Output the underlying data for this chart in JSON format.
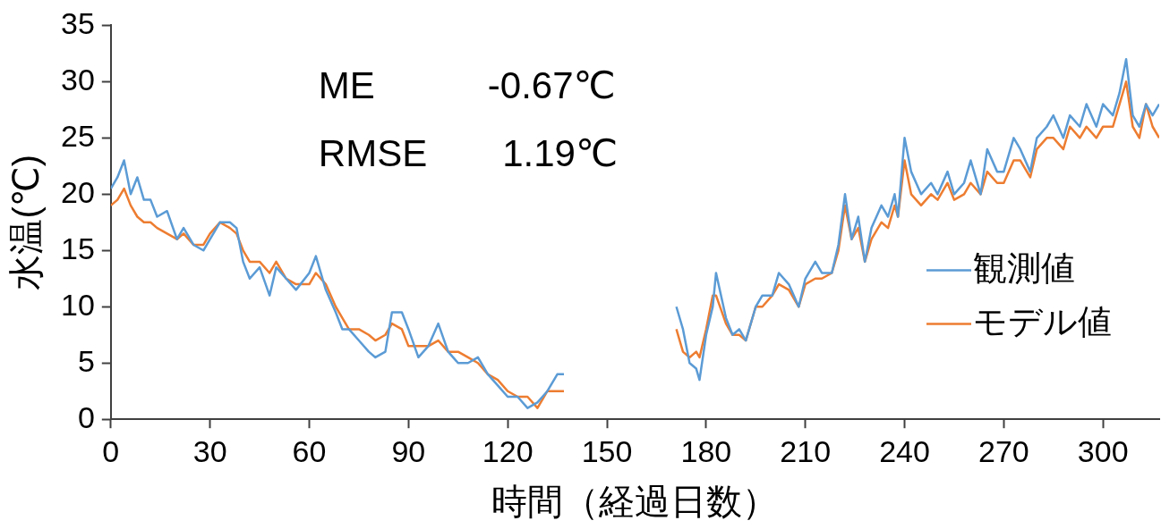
{
  "chart_data": {
    "type": "line",
    "xlabel": "時間（経過日数）",
    "ylabel": "水温(℃)",
    "annotations": [
      "ME　　　-0.67℃",
      "RMSE　　1.19℃"
    ],
    "xlim": [
      0,
      317
    ],
    "xticks": [
      0,
      30,
      60,
      90,
      120,
      150,
      180,
      210,
      240,
      270,
      300
    ],
    "ylim": [
      0,
      35
    ],
    "yticks": [
      0,
      5,
      10,
      15,
      20,
      25,
      30,
      35
    ],
    "grid": false,
    "legend": "right",
    "marker": "none",
    "line_style": "solid",
    "x": [
      0,
      2,
      4,
      6,
      8,
      10,
      12,
      14,
      17,
      20,
      22,
      25,
      28,
      30,
      33,
      36,
      38,
      40,
      42,
      45,
      48,
      50,
      53,
      56,
      60,
      62,
      65,
      68,
      70,
      72,
      75,
      78,
      80,
      83,
      85,
      88,
      90,
      93,
      96,
      99,
      102,
      105,
      108,
      111,
      114,
      117,
      120,
      123,
      126,
      129,
      132,
      135,
      137,
      150,
      171,
      173,
      175,
      177,
      178,
      180,
      182,
      183,
      186,
      188,
      190,
      192,
      195,
      197,
      200,
      202,
      205,
      208,
      210,
      213,
      215,
      218,
      220,
      222,
      224,
      226,
      228,
      230,
      233,
      235,
      237,
      238,
      240,
      242,
      245,
      248,
      250,
      253,
      255,
      258,
      260,
      263,
      265,
      268,
      270,
      273,
      275,
      278,
      280,
      283,
      285,
      288,
      290,
      293,
      295,
      298,
      300,
      303,
      305,
      307,
      309,
      311,
      313,
      315,
      317
    ],
    "series": [
      {
        "name": "観測値",
        "color": "#5b9bd5",
        "values": [
          20.5,
          21.5,
          23,
          20,
          21.5,
          19.5,
          19.5,
          18,
          18.5,
          16,
          17,
          15.5,
          15,
          16,
          17.5,
          17.5,
          17,
          14,
          12.5,
          13.5,
          11,
          13.5,
          12.5,
          11.5,
          13,
          14.5,
          11.5,
          9.5,
          8,
          8,
          7,
          6,
          5.5,
          6,
          9.5,
          9.5,
          8,
          5.5,
          6.5,
          8.5,
          6,
          5,
          5,
          5.5,
          4,
          3,
          2,
          2,
          1,
          1.5,
          2.5,
          4,
          4,
          null,
          10,
          8,
          5,
          4.5,
          3.5,
          7.5,
          10,
          13,
          9,
          7.5,
          8,
          7,
          10,
          11,
          11,
          13,
          12,
          10,
          12.5,
          14,
          13,
          13,
          15.5,
          20,
          16,
          18,
          14,
          17,
          19,
          18,
          20,
          18,
          25,
          22,
          20,
          21,
          20,
          22,
          20,
          21,
          23,
          20,
          24,
          22,
          22,
          25,
          24,
          22,
          25,
          26,
          27,
          25,
          27,
          26,
          28,
          26,
          28,
          27,
          29,
          32,
          27,
          26,
          28,
          27,
          28
        ]
      },
      {
        "name": "モデル値",
        "color": "#ed7d31",
        "values": [
          19,
          19.5,
          20.5,
          19,
          18,
          17.5,
          17.5,
          17,
          16.5,
          16,
          16.5,
          15.5,
          15.5,
          16.5,
          17.5,
          17,
          16.5,
          15,
          14,
          14,
          13,
          14,
          12.5,
          12,
          12,
          13,
          12,
          10,
          9,
          8,
          8,
          7.5,
          7,
          7.5,
          8.5,
          8,
          6.5,
          6.5,
          6.5,
          7,
          6,
          6,
          5.5,
          5,
          4,
          3.5,
          2.5,
          2,
          2,
          1,
          2.5,
          2.5,
          2.5,
          null,
          8,
          6,
          5.5,
          6,
          5.5,
          8,
          11,
          11,
          8.5,
          7.5,
          7.5,
          7,
          10,
          10,
          11,
          12,
          11.5,
          10,
          12,
          12.5,
          12.5,
          13,
          15,
          19,
          16,
          17,
          14,
          16,
          17.5,
          17,
          19,
          18,
          23,
          20,
          19,
          20,
          19.5,
          21,
          19.5,
          20,
          21,
          20,
          22,
          21,
          21,
          23,
          23,
          21.5,
          24,
          25,
          25,
          24,
          26,
          25,
          26,
          25,
          26,
          26,
          28,
          30,
          26,
          25,
          28,
          26,
          25
        ]
      }
    ]
  }
}
